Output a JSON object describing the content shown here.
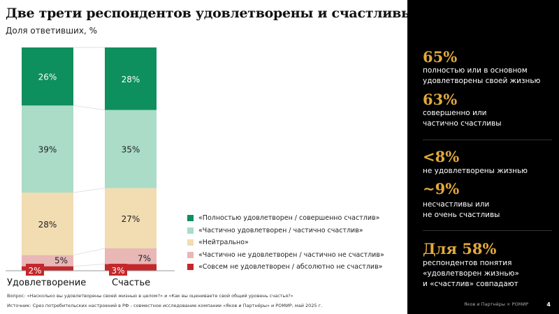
{
  "title": "Две трети респондентов удовлетворены и счастливы",
  "subtitle": "Доля ответивших, %",
  "chart_data": {
    "type": "bar",
    "stacked": true,
    "categories": [
      "Удовлетворение",
      "Счастье"
    ],
    "series": [
      {
        "name": "«Совсем не удовлетворен / абсолютно не счастлив»",
        "values": [
          2,
          3
        ],
        "color": "#c4282b"
      },
      {
        "name": "«Частично не удовлетворен / частично не счастлив»",
        "values": [
          5,
          7
        ],
        "color": "#e8b7b6"
      },
      {
        "name": "«Нейтрально»",
        "values": [
          28,
          27
        ],
        "color": "#f2dcb2"
      },
      {
        "name": "«Частично удовлетворен / частично счастлив»",
        "values": [
          39,
          35
        ],
        "color": "#aadcc8"
      },
      {
        "name": "«Полностью удовлетворен / совершенно счастлив»",
        "values": [
          26,
          28
        ],
        "color": "#0e8f5e"
      }
    ],
    "labels": [
      [
        "2%",
        "5%",
        "28%",
        "39%",
        "26%"
      ],
      [
        "3%",
        "7%",
        "27%",
        "35%",
        "28%"
      ]
    ],
    "ylim": [
      0,
      100
    ],
    "legend": "right"
  },
  "legend": [
    "«Полностью удовлетворен / совершенно счастлив»",
    "«Частично удовлетворен / частично счастлив»",
    "«Нейтрально»",
    "«Частично не удовлетворен / частично не счастлив»",
    "«Совсем не удовлетворен / абсолютно не счастлив»"
  ],
  "footnotes": {
    "question": "Вопрос: «Насколько вы удовлетворены своей жизнью в целом?» и «Как вы оцениваете свой общий уровень счастья?»",
    "source": "Источник: Срез потребительских настроений в РФ - совместное исследование компании «Яков и Партнёры» и РОМИР, май 2025 г."
  },
  "panel": {
    "stats": [
      {
        "value": "65%",
        "text": "полностью или в основном\nудовлетворены своей жизнью"
      },
      {
        "value": "63%",
        "text": "совершенно или\nчастично счастливы"
      },
      {
        "value": "<8%",
        "text": "не удовлетворены жизнью"
      },
      {
        "value": "~9%",
        "text": "несчастливы или\nне очень счастливы"
      },
      {
        "value": "Для 58%",
        "text": "респондентов понятия\n«удовлетворен жизнью»\nи «счастлив» совпадают"
      }
    ],
    "brand": "Яков и Партнёры × РОМИР",
    "page": "4"
  },
  "colors": {
    "accent": "#e2a93b",
    "panel_bg": "#000000"
  }
}
